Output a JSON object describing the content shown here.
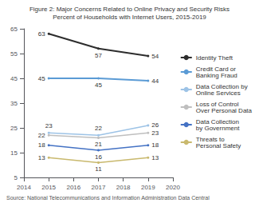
{
  "chart_data": {
    "type": "line",
    "title": "Figure 2: Major Concerns Related to Online Privacy and Security Risks",
    "subtitle": "Percent of Households with Internet Users, 2015-2019",
    "annotations": [
      "Source: National Telecommunications and Information Administration Data Central"
    ],
    "x": [
      2015,
      2017,
      2019
    ],
    "series": [
      {
        "name": "Identity Theft",
        "color": "#2d2d2d",
        "values": [
          63,
          57,
          54
        ]
      },
      {
        "name": "Credit Card or\nBanking Fraud",
        "color": "#5b9bd5",
        "values": [
          45,
          45,
          44
        ]
      },
      {
        "name": "Data Collection by\nOnline Services",
        "color": "#9dc3e6",
        "values": [
          23,
          22,
          26
        ]
      },
      {
        "name": "Loss of Control\nOver Personal Data",
        "color": "#bfbfbf",
        "values": [
          22,
          21,
          23
        ]
      },
      {
        "name": "Data Collection\nby Government",
        "color": "#4472c4",
        "values": [
          18,
          16,
          18
        ]
      },
      {
        "name": "Threats to\nPersonal Safety",
        "color": "#c9b96e",
        "values": [
          13,
          11,
          13
        ]
      }
    ],
    "xlim": [
      2014,
      2020
    ],
    "xticks": [
      2014,
      2015,
      2016,
      2017,
      2018,
      2019,
      2020
    ],
    "ylim": [
      5,
      65
    ],
    "yticks": [
      5,
      15,
      25,
      35,
      45,
      55,
      65
    ],
    "grid": false,
    "legend": "right",
    "data_labels": true
  }
}
